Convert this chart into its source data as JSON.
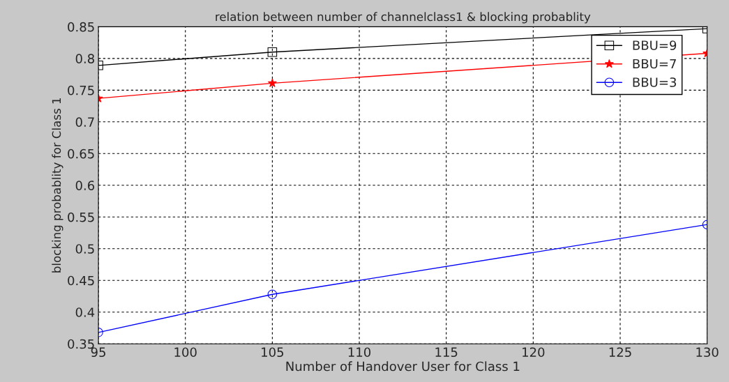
{
  "chart_data": {
    "type": "line",
    "title": "relation between number of channelclass1 & blocking probablity",
    "xlabel": "Number of Handover User for Class 1",
    "ylabel": "blocking probablity for Class 1",
    "x": [
      95,
      105,
      130
    ],
    "series": [
      {
        "name": "BBU=9",
        "color": "#000000",
        "marker": "square",
        "values": [
          0.789,
          0.81,
          0.847
        ]
      },
      {
        "name": "BBU=7",
        "color": "#ff0000",
        "marker": "star",
        "values": [
          0.737,
          0.761,
          0.808
        ]
      },
      {
        "name": "BBU=3",
        "color": "#0000ff",
        "marker": "circle",
        "values": [
          0.368,
          0.428,
          0.538
        ]
      }
    ],
    "xlim": [
      95,
      130
    ],
    "xticks": [
      95,
      100,
      105,
      110,
      115,
      120,
      125,
      130
    ],
    "ylim": [
      0.35,
      0.85
    ],
    "yticks": [
      0.35,
      0.4,
      0.45,
      0.5,
      0.55,
      0.6,
      0.65,
      0.7,
      0.75,
      0.8,
      0.85
    ],
    "grid": true,
    "legend": "top right",
    "line_style": "solid"
  }
}
